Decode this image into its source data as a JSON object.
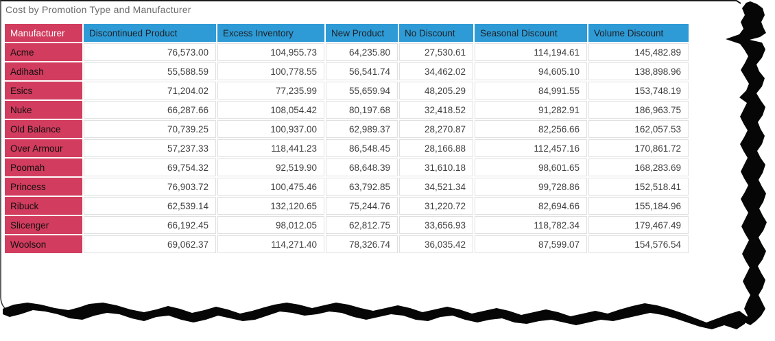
{
  "title": "Cost by Promotion Type and Manufacturer",
  "table": {
    "columns": [
      "Manufacturer",
      "Discontinued Product",
      "Excess Inventory",
      "New Product",
      "No Discount",
      "Seasonal Discount",
      "Volume Discount"
    ],
    "rows": [
      {
        "manufacturer": "Acme",
        "values": [
          "76,573.00",
          "104,955.73",
          "64,235.80",
          "27,530.61",
          "114,194.61",
          "145,482.89"
        ]
      },
      {
        "manufacturer": "Adihash",
        "values": [
          "55,588.59",
          "100,778.55",
          "56,541.74",
          "34,462.02",
          "94,605.10",
          "138,898.96"
        ]
      },
      {
        "manufacturer": "Esics",
        "values": [
          "71,204.02",
          "77,235.99",
          "55,659.94",
          "48,205.29",
          "84,991.55",
          "153,748.19"
        ]
      },
      {
        "manufacturer": "Nuke",
        "values": [
          "66,287.66",
          "108,054.42",
          "80,197.68",
          "32,418.52",
          "91,282.91",
          "186,963.75"
        ]
      },
      {
        "manufacturer": "Old Balance",
        "values": [
          "70,739.25",
          "100,937.00",
          "62,989.37",
          "28,270.87",
          "82,256.66",
          "162,057.53"
        ]
      },
      {
        "manufacturer": "Over Armour",
        "values": [
          "57,237.33",
          "118,441.23",
          "86,548.45",
          "28,166.88",
          "112,457.16",
          "170,861.72"
        ]
      },
      {
        "manufacturer": "Poomah",
        "values": [
          "69,754.32",
          "92,519.90",
          "68,648.39",
          "31,610.18",
          "98,601.65",
          "168,283.69"
        ]
      },
      {
        "manufacturer": "Princess",
        "values": [
          "76,903.72",
          "100,475.46",
          "63,792.85",
          "34,521.34",
          "99,728.86",
          "152,518.41"
        ]
      },
      {
        "manufacturer": "Ribuck",
        "values": [
          "62,539.14",
          "132,120.65",
          "75,244.76",
          "31,220.72",
          "82,694.66",
          "155,184.96"
        ]
      },
      {
        "manufacturer": "Slicenger",
        "values": [
          "66,192.45",
          "98,012.05",
          "62,812.75",
          "33,656.93",
          "118,782.34",
          "179,467.49"
        ]
      },
      {
        "manufacturer": "Woolson",
        "values": [
          "69,062.37",
          "114,271.40",
          "78,326.74",
          "36,035.42",
          "87,599.07",
          "154,576.54"
        ]
      }
    ]
  },
  "colors": {
    "row_header_bg": "#D23C5E",
    "column_header_bg": "#2E9BD6",
    "grid_line": "#E0E0E0",
    "title_text": "#6A6A6A",
    "value_text": "#404040",
    "torn_edge": "#000000"
  },
  "chart_data": {
    "type": "table",
    "title": "Cost by Promotion Type and Manufacturer",
    "columns": [
      "Manufacturer",
      "Discontinued Product",
      "Excess Inventory",
      "New Product",
      "No Discount",
      "Seasonal Discount",
      "Volume Discount"
    ],
    "rows": [
      [
        "Acme",
        76573.0,
        104955.73,
        64235.8,
        27530.61,
        114194.61,
        145482.89
      ],
      [
        "Adihash",
        55588.59,
        100778.55,
        56541.74,
        34462.02,
        94605.1,
        138898.96
      ],
      [
        "Esics",
        71204.02,
        77235.99,
        55659.94,
        48205.29,
        84991.55,
        153748.19
      ],
      [
        "Nuke",
        66287.66,
        108054.42,
        80197.68,
        32418.52,
        91282.91,
        186963.75
      ],
      [
        "Old Balance",
        70739.25,
        100937.0,
        62989.37,
        28270.87,
        82256.66,
        162057.53
      ],
      [
        "Over Armour",
        57237.33,
        118441.23,
        86548.45,
        28166.88,
        112457.16,
        170861.72
      ],
      [
        "Poomah",
        69754.32,
        92519.9,
        68648.39,
        31610.18,
        98601.65,
        168283.69
      ],
      [
        "Princess",
        76903.72,
        100475.46,
        63792.85,
        34521.34,
        99728.86,
        152518.41
      ],
      [
        "Ribuck",
        62539.14,
        132120.65,
        75244.76,
        31220.72,
        82694.66,
        155184.96
      ],
      [
        "Slicenger",
        66192.45,
        98012.05,
        62812.75,
        33656.93,
        118782.34,
        179467.49
      ],
      [
        "Woolson",
        69062.37,
        114271.4,
        78326.74,
        36035.42,
        87599.07,
        154576.54
      ]
    ]
  }
}
